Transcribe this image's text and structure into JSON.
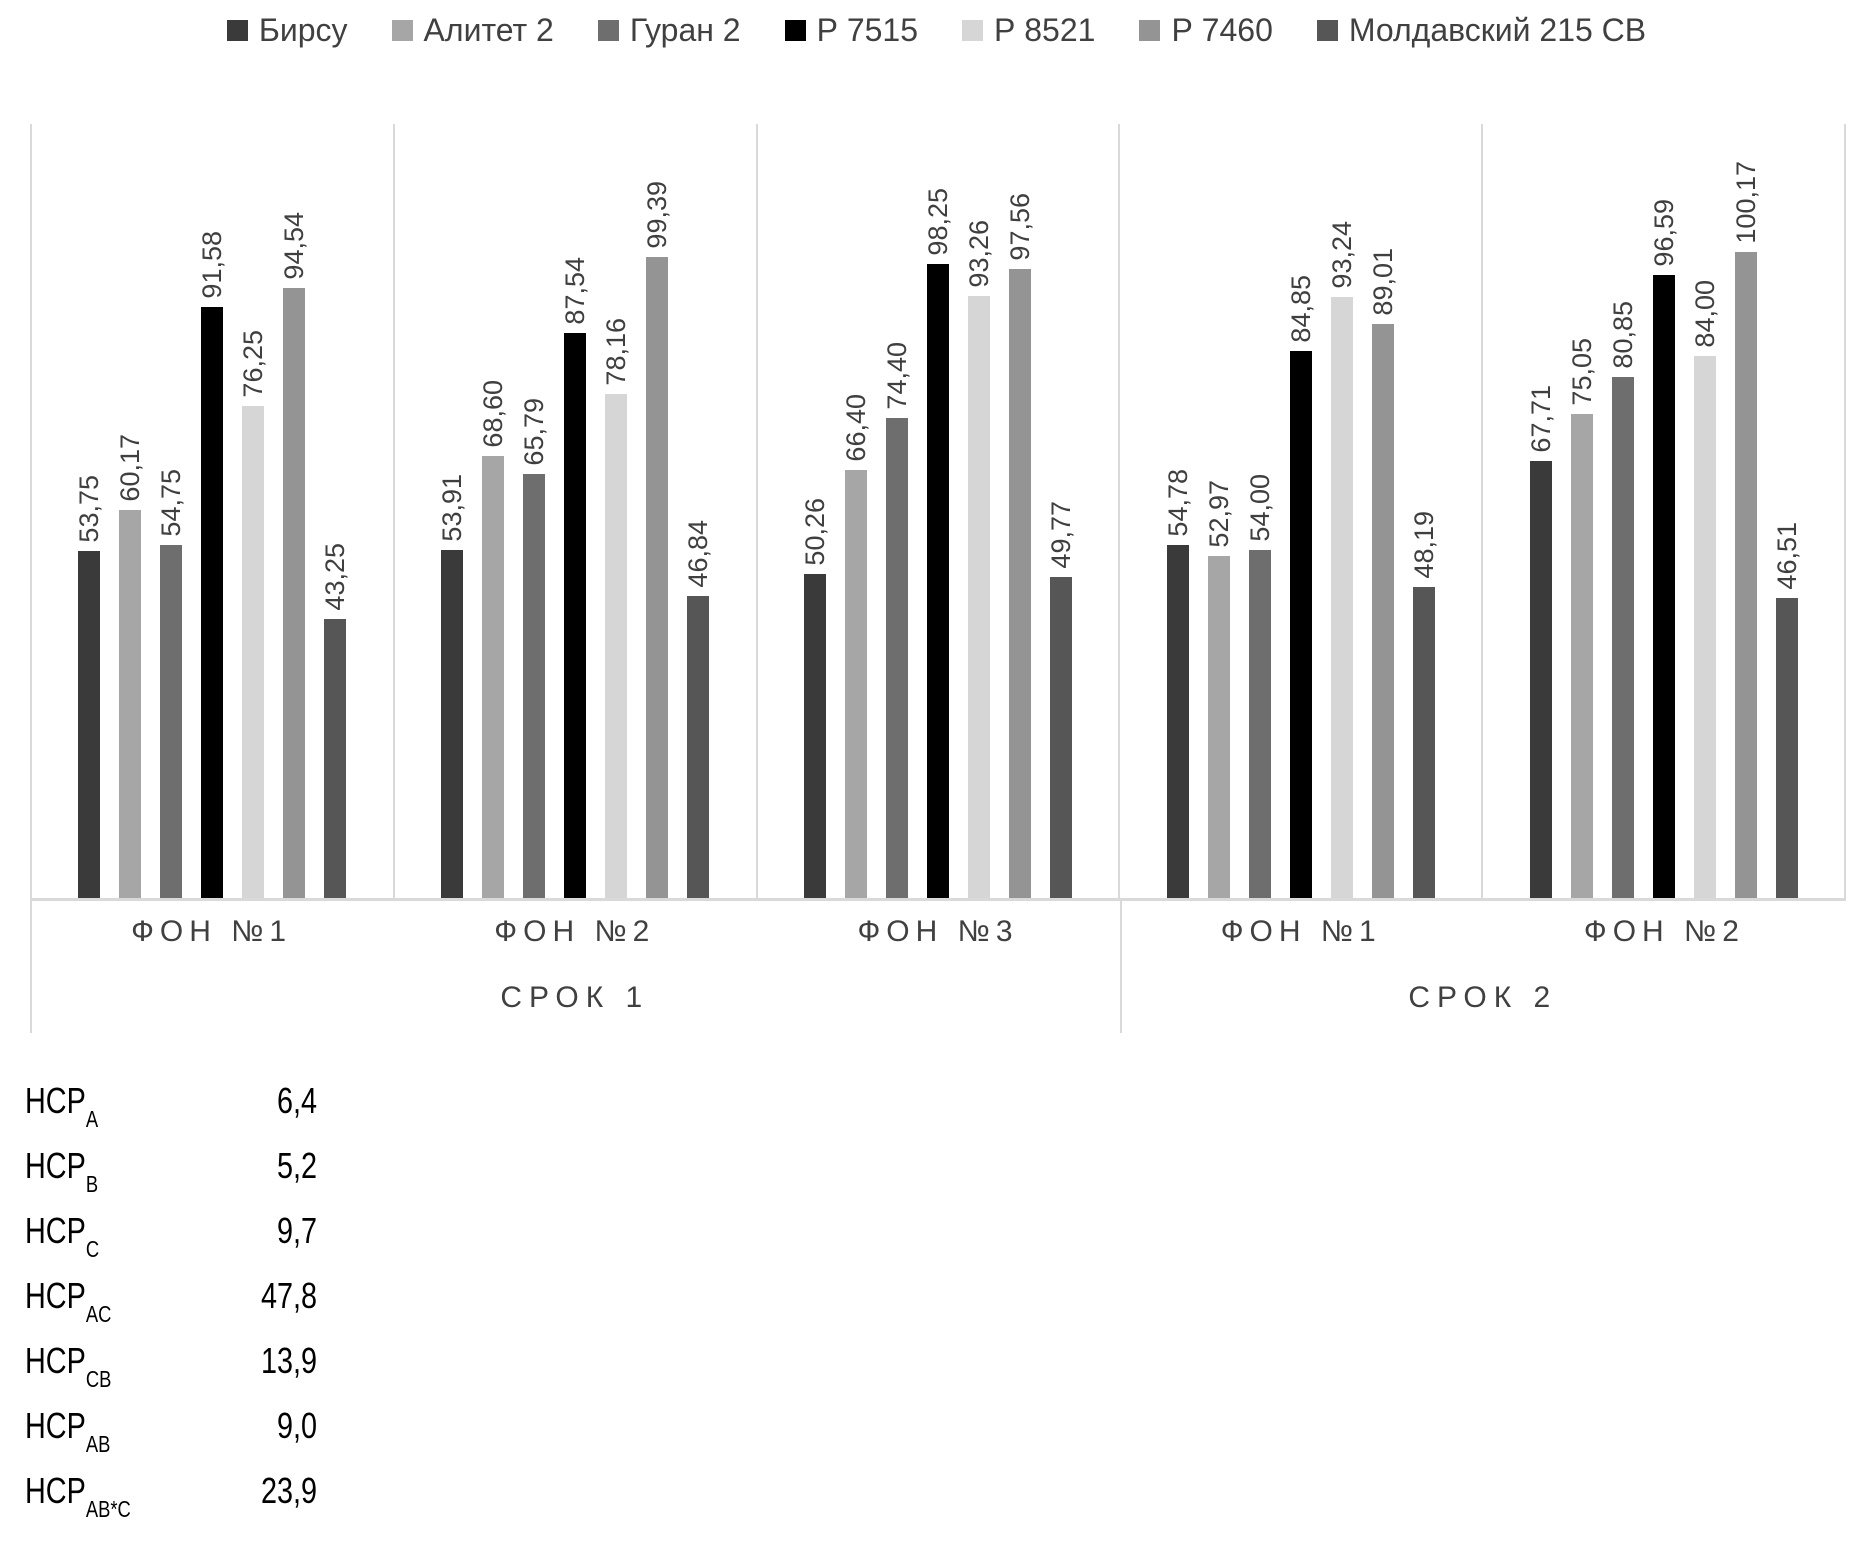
{
  "chart_data": {
    "type": "bar",
    "title": "",
    "legend_position": "top",
    "grid": false,
    "ymax": 120,
    "decimal_separator": ",",
    "series": [
      {
        "name": "Бирсу",
        "color": "#3a3a3a"
      },
      {
        "name": "Алитет 2",
        "color": "#a6a6a6"
      },
      {
        "name": "Гуран 2",
        "color": "#6e6e6e"
      },
      {
        "name": "Р 7515",
        "color": "#000000"
      },
      {
        "name": "Р 8521",
        "color": "#d6d6d6"
      },
      {
        "name": "Р 7460",
        "color": "#949494"
      },
      {
        "name": "Молдавский 215 СВ",
        "color": "#565656"
      }
    ],
    "groups": [
      {
        "category": "ФОН №1",
        "section": "СРОК 1",
        "values": [
          53.75,
          60.17,
          54.75,
          91.58,
          76.25,
          94.54,
          43.25
        ]
      },
      {
        "category": "ФОН №2",
        "section": "СРОК 1",
        "values": [
          53.91,
          68.6,
          65.79,
          87.54,
          78.16,
          99.39,
          46.84
        ]
      },
      {
        "category": "ФОН №3",
        "section": "СРОК 1",
        "values": [
          50.26,
          66.4,
          74.4,
          98.25,
          93.26,
          97.56,
          49.77
        ]
      },
      {
        "category": "ФОН №1",
        "section": "СРОК 2",
        "values": [
          54.78,
          52.97,
          54.0,
          84.85,
          93.24,
          89.01,
          48.19
        ]
      },
      {
        "category": "ФОН №2",
        "section": "СРОК 2",
        "values": [
          67.71,
          75.05,
          80.85,
          96.59,
          84.0,
          100.17,
          46.51
        ]
      }
    ],
    "sections": [
      {
        "label": "СРОК 1",
        "group_count": 3
      },
      {
        "label": "СРОК 2",
        "group_count": 2
      }
    ]
  },
  "hcp_table": {
    "rows": [
      {
        "base": "НСР",
        "sub": "A",
        "value": "6,4"
      },
      {
        "base": "НСР",
        "sub": "B",
        "value": "5,2"
      },
      {
        "base": "НСР",
        "sub": "C",
        "value": "9,7"
      },
      {
        "base": "НСР",
        "sub": "AC",
        "value": "47,8"
      },
      {
        "base": "НСР",
        "sub": "CB",
        "value": "13,9"
      },
      {
        "base": "НСР",
        "sub": "AB",
        "value": "9,0"
      },
      {
        "base": "НСР",
        "sub": "AB*C",
        "value": "23,9"
      }
    ]
  },
  "colors": {
    "text": "#404040",
    "grid_line": "#d9d9d9",
    "hcp_text": "#000000"
  }
}
